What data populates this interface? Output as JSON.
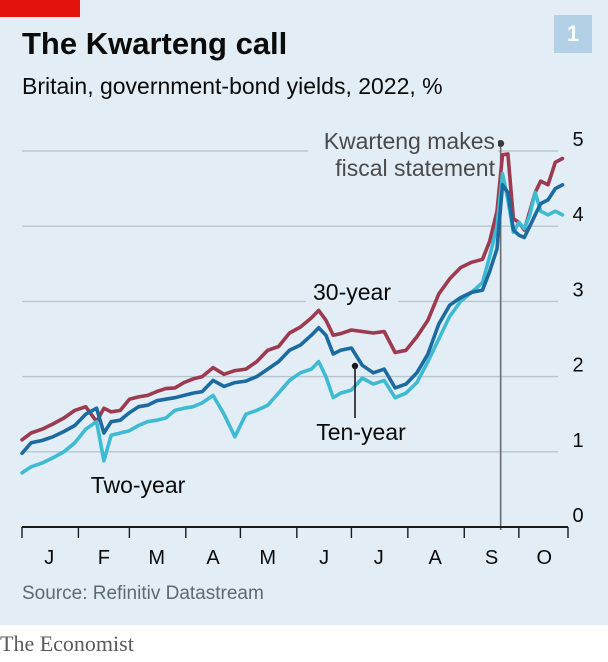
{
  "header": {
    "title": "The Kwarteng call",
    "subtitle": "Britain, government-bond yields, 2022, %",
    "chart_number": "1"
  },
  "footer": {
    "source": "Source: Refinitiv Datastream",
    "brand": "The Economist"
  },
  "colors": {
    "background": "#e3edf5",
    "thirty_year": "#9c3a4f",
    "ten_year": "#1c6ba0",
    "two_year": "#3ebbd2",
    "accent_red": "#e3120b",
    "grid": "#b7c6d0"
  },
  "chart_data": {
    "type": "line",
    "title": "The Kwarteng call",
    "subtitle": "Britain, government-bond yields, 2022, %",
    "ylabel": "%",
    "ylim": [
      0,
      5
    ],
    "yticks": [
      0,
      1,
      2,
      3,
      4,
      5
    ],
    "x_domain_days": [
      1,
      301
    ],
    "month_labels": [
      {
        "label": "J",
        "day": 16
      },
      {
        "label": "F",
        "day": 46
      },
      {
        "label": "M",
        "day": 75
      },
      {
        "label": "A",
        "day": 106
      },
      {
        "label": "M",
        "day": 136
      },
      {
        "label": "J",
        "day": 167
      },
      {
        "label": "J",
        "day": 197
      },
      {
        "label": "A",
        "day": 228
      },
      {
        "label": "S",
        "day": 259
      },
      {
        "label": "O",
        "day": 288
      }
    ],
    "series": [
      {
        "name": "30-year",
        "label": "30-year",
        "color": "#9c3a4f",
        "days": [
          1,
          6,
          12,
          18,
          24,
          30,
          36,
          42,
          46,
          50,
          55,
          60,
          65,
          70,
          75,
          80,
          85,
          90,
          95,
          100,
          106,
          112,
          118,
          124,
          130,
          136,
          142,
          148,
          154,
          160,
          164,
          168,
          172,
          176,
          182,
          188,
          194,
          200,
          206,
          212,
          218,
          224,
          230,
          236,
          242,
          248,
          254,
          258,
          262,
          265,
          268,
          271,
          274,
          277,
          280,
          283,
          286,
          290,
          294,
          298
        ],
        "values": [
          1.16,
          1.25,
          1.3,
          1.37,
          1.45,
          1.55,
          1.6,
          1.4,
          1.58,
          1.53,
          1.55,
          1.7,
          1.73,
          1.75,
          1.8,
          1.84,
          1.85,
          1.92,
          1.97,
          2.0,
          2.12,
          2.03,
          2.08,
          2.1,
          2.2,
          2.35,
          2.4,
          2.58,
          2.66,
          2.78,
          2.88,
          2.75,
          2.55,
          2.57,
          2.62,
          2.6,
          2.58,
          2.6,
          2.32,
          2.35,
          2.53,
          2.75,
          3.1,
          3.3,
          3.45,
          3.52,
          3.56,
          3.8,
          4.2,
          4.95,
          4.96,
          4.1,
          4.05,
          3.95,
          4.2,
          4.45,
          4.6,
          4.55,
          4.85,
          4.9
        ]
      },
      {
        "name": "Ten-year",
        "label": "Ten-year",
        "color": "#1c6ba0",
        "days": [
          1,
          6,
          12,
          18,
          24,
          30,
          36,
          42,
          46,
          50,
          55,
          60,
          65,
          70,
          75,
          80,
          85,
          90,
          95,
          100,
          106,
          112,
          118,
          124,
          130,
          136,
          142,
          148,
          154,
          160,
          164,
          168,
          172,
          176,
          182,
          188,
          194,
          200,
          206,
          212,
          218,
          224,
          230,
          236,
          242,
          248,
          254,
          258,
          262,
          265,
          268,
          271,
          274,
          277,
          280,
          283,
          286,
          290,
          294,
          298
        ],
        "values": [
          0.98,
          1.12,
          1.15,
          1.2,
          1.27,
          1.35,
          1.5,
          1.58,
          1.25,
          1.4,
          1.42,
          1.52,
          1.6,
          1.62,
          1.68,
          1.7,
          1.72,
          1.75,
          1.78,
          1.8,
          1.95,
          1.87,
          1.92,
          1.94,
          2.0,
          2.1,
          2.2,
          2.35,
          2.42,
          2.55,
          2.65,
          2.55,
          2.3,
          2.35,
          2.38,
          2.15,
          2.05,
          2.1,
          1.85,
          1.9,
          2.05,
          2.3,
          2.7,
          2.95,
          3.05,
          3.12,
          3.15,
          3.4,
          3.7,
          4.55,
          4.45,
          3.95,
          3.88,
          3.85,
          4.0,
          4.15,
          4.3,
          4.35,
          4.5,
          4.55
        ]
      },
      {
        "name": "Two-year",
        "label": "Two-year",
        "color": "#3ebbd2",
        "days": [
          1,
          6,
          12,
          18,
          24,
          30,
          36,
          42,
          46,
          50,
          55,
          60,
          65,
          70,
          75,
          80,
          85,
          90,
          95,
          100,
          106,
          112,
          118,
          124,
          130,
          136,
          142,
          148,
          154,
          160,
          164,
          168,
          172,
          176,
          182,
          188,
          194,
          200,
          206,
          212,
          218,
          224,
          230,
          236,
          242,
          248,
          254,
          258,
          262,
          265,
          268,
          271,
          274,
          277,
          280,
          283,
          286,
          290,
          294,
          298
        ],
        "values": [
          0.72,
          0.8,
          0.85,
          0.92,
          1.0,
          1.12,
          1.3,
          1.4,
          0.88,
          1.22,
          1.25,
          1.28,
          1.35,
          1.4,
          1.42,
          1.45,
          1.55,
          1.58,
          1.6,
          1.65,
          1.75,
          1.5,
          1.2,
          1.5,
          1.55,
          1.62,
          1.78,
          1.95,
          2.05,
          2.1,
          2.2,
          2.0,
          1.72,
          1.78,
          1.82,
          1.98,
          1.9,
          1.95,
          1.72,
          1.78,
          1.92,
          2.2,
          2.5,
          2.8,
          3.0,
          3.12,
          3.25,
          3.6,
          4.0,
          4.7,
          4.35,
          3.92,
          4.05,
          3.97,
          4.15,
          4.45,
          4.2,
          4.15,
          4.2,
          4.15
        ]
      }
    ],
    "annotations": [
      {
        "text": [
          "Kwarteng makes",
          "fiscal statement"
        ],
        "day": 264
      }
    ]
  }
}
